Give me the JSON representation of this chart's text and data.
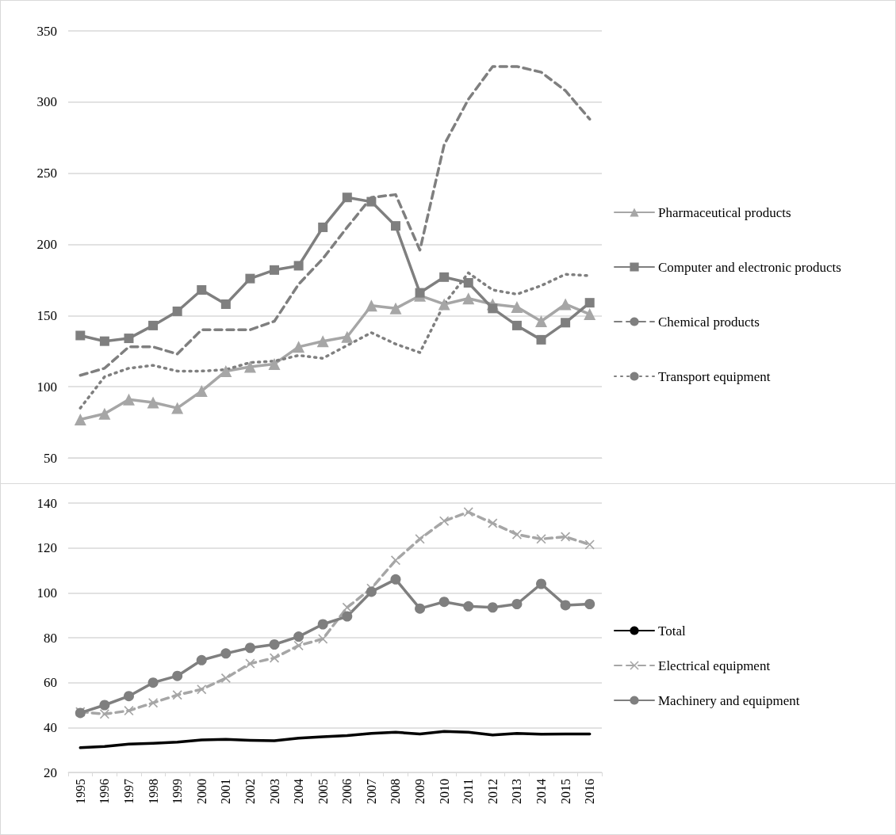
{
  "chart_data": [
    {
      "type": "line",
      "categories": [
        "1995",
        "1996",
        "1997",
        "1998",
        "1999",
        "2000",
        "2001",
        "2002",
        "2003",
        "2004",
        "2005",
        "2006",
        "2007",
        "2008",
        "2009",
        "2010",
        "2011",
        "2012",
        "2013",
        "2014",
        "2015",
        "2016"
      ],
      "series": [
        {
          "name": "Pharmaceutical products",
          "color": "#a6a6a6",
          "marker": "triangle",
          "line_style": "solid",
          "values": [
            77,
            81,
            91,
            89,
            85,
            97,
            111,
            114,
            116,
            128,
            132,
            135,
            157,
            155,
            164,
            158,
            162,
            158,
            156,
            146,
            158,
            151
          ]
        },
        {
          "name": "Computer and electronic products",
          "color": "#7f7f7f",
          "marker": "square",
          "line_style": "solid",
          "values": [
            136,
            132,
            134,
            143,
            153,
            168,
            158,
            176,
            182,
            185,
            212,
            233,
            230,
            213,
            166,
            177,
            173,
            155,
            143,
            133,
            145,
            159
          ]
        },
        {
          "name": "Chemical products",
          "color": "#7f7f7f",
          "marker": "none",
          "line_style": "dashed",
          "values": [
            108,
            113,
            128,
            128,
            123,
            140,
            140,
            140,
            146,
            172,
            190,
            212,
            233,
            235,
            196,
            270,
            302,
            325,
            325,
            321,
            308,
            288
          ]
        },
        {
          "name": "Transport equipment",
          "color": "#7f7f7f",
          "marker": "none",
          "line_style": "dotted",
          "values": [
            85,
            107,
            113,
            115,
            111,
            111,
            112,
            117,
            118,
            122,
            120,
            129,
            138,
            130,
            124,
            158,
            180,
            168,
            165,
            171,
            179,
            178
          ]
        }
      ],
      "ylim": [
        50,
        350
      ],
      "yticks": [
        50,
        100,
        150,
        200,
        250,
        300,
        350
      ],
      "grid": "y",
      "legend": "right",
      "tick_labels": "y"
    },
    {
      "type": "line",
      "categories": [
        "1995",
        "1996",
        "1997",
        "1998",
        "1999",
        "2000",
        "2001",
        "2002",
        "2003",
        "2004",
        "2005",
        "2006",
        "2007",
        "2008",
        "2009",
        "2010",
        "2011",
        "2012",
        "2013",
        "2014",
        "2015",
        "2016"
      ],
      "series": [
        {
          "name": "Total",
          "color": "#000000",
          "marker": "none",
          "line_style": "solid",
          "values": [
            31,
            31.6,
            32.6,
            33,
            33.5,
            34.5,
            34.7,
            34.3,
            34.1,
            35.3,
            35.9,
            36.4,
            37.4,
            37.9,
            37.1,
            38.3,
            37.9,
            36.7,
            37.4,
            37,
            37.1,
            37.1
          ]
        },
        {
          "name": "Electrical equipment",
          "color": "#a6a6a6",
          "marker": "cross",
          "line_style": "dashed",
          "values": [
            47,
            46,
            47.5,
            51,
            54.5,
            57,
            62,
            68.5,
            71,
            76.5,
            79.5,
            93.5,
            102,
            114.5,
            124,
            132,
            136,
            131,
            126,
            124,
            125,
            121.5
          ]
        },
        {
          "name": "Machinery and equipment",
          "color": "#7f7f7f",
          "marker": "circle",
          "line_style": "solid",
          "values": [
            46.5,
            50,
            54,
            60,
            63,
            70,
            73,
            75.5,
            77,
            80.5,
            86,
            89.5,
            100.5,
            106,
            93,
            96,
            94,
            93.5,
            95,
            104,
            94.5,
            95
          ]
        }
      ],
      "ylim": [
        20,
        140
      ],
      "yticks": [
        20,
        40,
        60,
        80,
        100,
        120,
        140
      ],
      "grid": "y",
      "legend": "right"
    }
  ]
}
